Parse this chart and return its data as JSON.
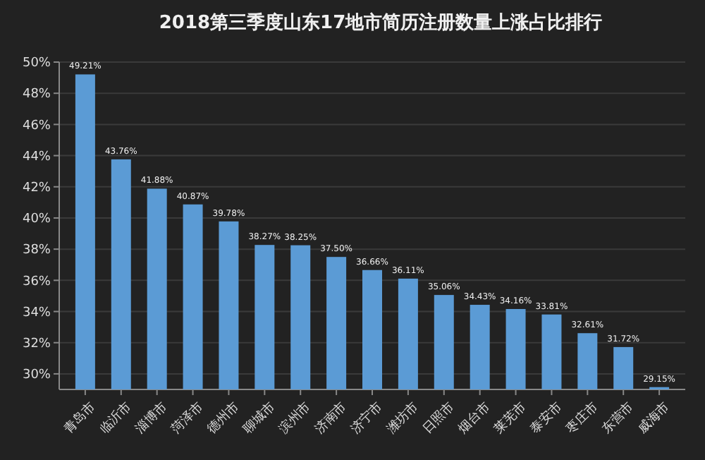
{
  "chart_data": {
    "type": "bar",
    "title": "2018第三季度山东17地市简历注册数量上涨占比排行",
    "categories": [
      "青岛市",
      "临沂市",
      "淄博市",
      "菏泽市",
      "德州市",
      "聊城市",
      "滨州市",
      "济南市",
      "济宁市",
      "潍坊市",
      "日照市",
      "烟台市",
      "莱芜市",
      "泰安市",
      "枣庄市",
      "东营市",
      "威海市"
    ],
    "values": [
      49.21,
      43.76,
      41.88,
      40.87,
      39.78,
      38.27,
      38.25,
      37.5,
      36.66,
      36.11,
      35.06,
      34.43,
      34.16,
      33.81,
      32.61,
      31.72,
      29.15
    ],
    "value_labels": [
      "49.21%",
      "43.76%",
      "41.88%",
      "40.87%",
      "39.78%",
      "38.27%",
      "38.25%",
      "37.50%",
      "36.66%",
      "36.11%",
      "35.06%",
      "34.43%",
      "34.16%",
      "33.81%",
      "32.61%",
      "31.72%",
      "29.15%"
    ],
    "color": "#5b9bd5",
    "ylim": [
      29,
      50
    ],
    "yticks": [
      {
        "value": 30,
        "label": "30%"
      },
      {
        "value": 32,
        "label": "32%"
      },
      {
        "value": 34,
        "label": "34%"
      },
      {
        "value": 36,
        "label": "36%"
      },
      {
        "value": 38,
        "label": "38%"
      },
      {
        "value": 40,
        "label": "40%"
      },
      {
        "value": 42,
        "label": "42%"
      },
      {
        "value": 44,
        "label": "44%"
      },
      {
        "value": 46,
        "label": "46%"
      },
      {
        "value": 48,
        "label": "48%"
      },
      {
        "value": 50,
        "label": "50%"
      }
    ],
    "grid": "y"
  }
}
